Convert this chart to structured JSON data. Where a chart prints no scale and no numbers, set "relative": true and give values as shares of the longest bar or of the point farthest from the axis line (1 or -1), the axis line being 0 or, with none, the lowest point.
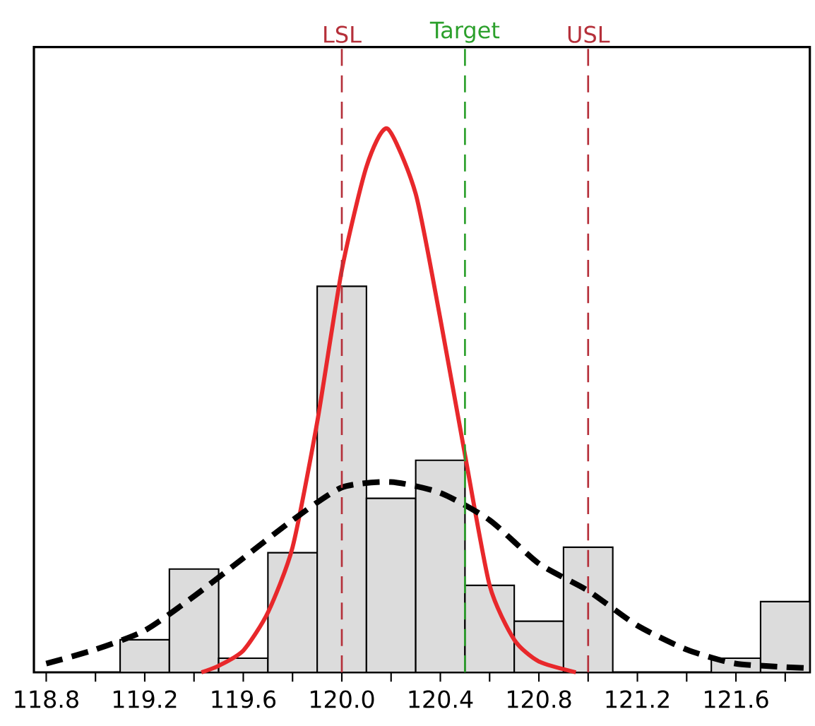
{
  "chart_data": {
    "type": "histogram",
    "relative": true,
    "tick_labels": "x",
    "grid": false,
    "xlim": [
      118.75,
      121.9
    ],
    "xticks": [
      118.8,
      {
        "value": 119.0,
        "label": null
      },
      119.2,
      {
        "value": 119.4,
        "label": null
      },
      119.6,
      {
        "value": 119.8,
        "label": null
      },
      {
        "value": 120.0,
        "label": "120.0"
      },
      {
        "value": 120.2,
        "label": null
      },
      120.4,
      {
        "value": 120.6,
        "label": null
      },
      120.8,
      {
        "value": 121.0,
        "label": null
      },
      121.2,
      {
        "value": 121.4,
        "label": null
      },
      121.6,
      {
        "value": 121.8,
        "label": null
      }
    ],
    "series": [
      {
        "color": "#dcdcdc",
        "bins": [
          119.1,
          119.3,
          119.5,
          119.7,
          119.9,
          120.1,
          120.3,
          120.5,
          120.7,
          120.9,
          121.1,
          121.3,
          121.5,
          121.7,
          121.9
        ],
        "values": [
          0.06,
          0.19,
          0.026,
          0.22,
          0.71,
          0.32,
          0.39,
          0.16,
          0.094,
          0.23,
          0,
          0,
          0.026,
          0.13
        ]
      },
      {
        "type": "line",
        "color": "#e8282b",
        "line_style": "solid",
        "x": [
          119.43,
          119.5,
          119.6,
          119.7,
          119.8,
          119.9,
          120.0,
          120.1,
          120.185,
          120.3,
          120.4,
          120.5,
          120.6,
          120.7,
          120.8,
          120.95
        ],
        "values": [
          0,
          0.012,
          0.04,
          0.11,
          0.23,
          0.46,
          0.74,
          0.93,
          1,
          0.88,
          0.65,
          0.4,
          0.16,
          0.06,
          0.02,
          0
        ]
      },
      {
        "type": "line",
        "color": "#000000",
        "line_style": "dashed",
        "x": [
          118.8,
          119.0,
          119.2,
          119.4,
          119.6,
          119.8,
          120.0,
          120.2,
          120.4,
          120.6,
          120.8,
          121.0,
          121.2,
          121.4,
          121.6,
          121.88
        ],
        "values": [
          0.016,
          0.042,
          0.077,
          0.14,
          0.21,
          0.28,
          0.34,
          0.35,
          0.33,
          0.28,
          0.2,
          0.15,
          0.086,
          0.042,
          0.016,
          0.008
        ]
      }
    ],
    "ref_lines": [
      {
        "axis": "x",
        "value": 120.0,
        "label": "LSL",
        "color": "#b5303a",
        "line_style": "dashed"
      },
      {
        "axis": "x",
        "value": 120.5,
        "label": "Target",
        "color": "#2ca02c",
        "line_style": "dashed"
      },
      {
        "axis": "x",
        "value": 121.0,
        "label": "USL",
        "color": "#b5303a",
        "line_style": "dashed"
      }
    ]
  }
}
